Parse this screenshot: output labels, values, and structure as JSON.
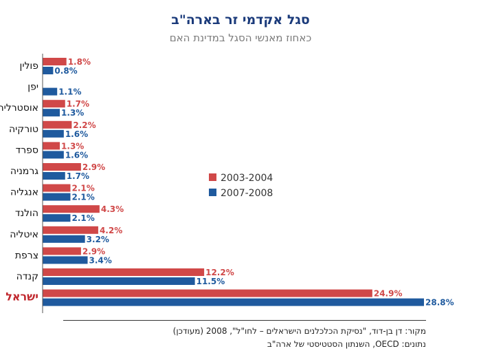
{
  "title": "סגל אקדמי זר בארה\"ב",
  "subtitle": "כאחוז מאנשי הסגל במדינת האם",
  "source": {
    "line1": "מקור: דן בן-דוד, \"נסיקת הכלכלנים הישראלים – לחו\"ל\", 2008 (מעודכן)",
    "line2": "נתונים: OECD, השנתון הסטטיסטי של ארה\"ב"
  },
  "colors": {
    "series1": "#d04848",
    "series2": "#1f5a9e",
    "highlight_label": "#c0272d"
  },
  "chart_data": {
    "type": "bar",
    "orientation": "horizontal",
    "title": "סגל אקדמי זר בארה\"ב",
    "subtitle": "כאחוז מאנשי הסגל במדינת האם",
    "categories": [
      "פולין",
      "יפן",
      "אוסטרליה",
      "טורקיה",
      "ספרד",
      "גרמניה",
      "אנגליה",
      "הולנד",
      "איטליה",
      "צרפת",
      "קנדה",
      "ישראל"
    ],
    "highlight_category": "ישראל",
    "series": [
      {
        "name": "2003-2004",
        "values": [
          1.8,
          null,
          1.7,
          2.2,
          1.3,
          2.9,
          2.1,
          4.3,
          4.2,
          2.9,
          12.2,
          24.9
        ]
      },
      {
        "name": "2007-2008",
        "values": [
          0.8,
          1.1,
          1.3,
          1.6,
          1.6,
          1.7,
          2.1,
          2.1,
          3.2,
          3.4,
          11.5,
          28.8
        ]
      }
    ],
    "xlim": [
      0,
      28.8
    ],
    "grid": false,
    "legend": "center"
  }
}
